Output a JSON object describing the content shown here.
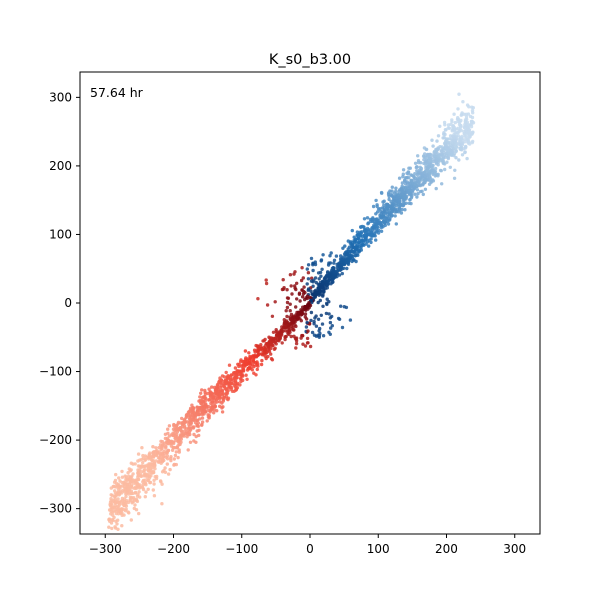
{
  "chart_data": {
    "type": "scatter",
    "title": "K_s0_b3.00",
    "annotation": "57.64 hr",
    "xlabel": "",
    "ylabel": "",
    "xlim": [
      -337,
      337
    ],
    "ylim": [
      -337,
      337
    ],
    "xticks": [
      -300,
      -200,
      -100,
      0,
      100,
      200,
      300
    ],
    "yticks": [
      -300,
      -200,
      -100,
      0,
      100,
      200,
      300
    ],
    "xtick_labels": [
      "−300",
      "−200",
      "−100",
      "0",
      "100",
      "200",
      "300"
    ],
    "ytick_labels": [
      "−300",
      "−200",
      "−100",
      "0",
      "100",
      "200",
      "300"
    ],
    "grid": false,
    "series": [
      {
        "colormap": "Reds",
        "color_dark": "#67000d",
        "color_light": "#fcbba1",
        "points_sample": [
          [
            -300,
            -237
          ],
          [
            -285,
            -225
          ],
          [
            -250,
            -200
          ],
          [
            -200,
            -160
          ],
          [
            -150,
            -120
          ],
          [
            -100,
            -85
          ],
          [
            -60,
            -55
          ],
          [
            -30,
            -30
          ],
          [
            -10,
            -10
          ],
          [
            -5,
            30
          ],
          [
            -3,
            55
          ],
          [
            -40,
            20
          ],
          [
            10,
            -80
          ]
        ]
      },
      {
        "colormap": "Blues",
        "color_dark": "#08306b",
        "color_light": "#c6dbef",
        "points_sample": [
          [
            237,
            245
          ],
          [
            230,
            230
          ],
          [
            200,
            200
          ],
          [
            150,
            160
          ],
          [
            100,
            120
          ],
          [
            60,
            80
          ],
          [
            30,
            40
          ],
          [
            10,
            10
          ],
          [
            5,
            -35
          ],
          [
            3,
            -60
          ],
          [
            40,
            -20
          ],
          [
            -5,
            95
          ],
          [
            130,
            175
          ]
        ]
      }
    ]
  }
}
